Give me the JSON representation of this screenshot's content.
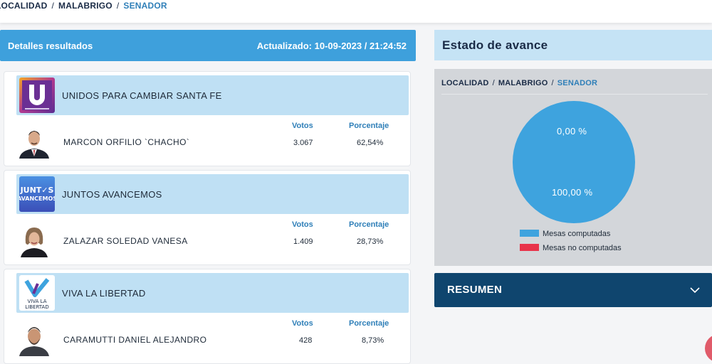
{
  "breadcrumb": {
    "items": [
      "LOCALIDAD",
      "MALABRIGO"
    ],
    "current": "SENADOR"
  },
  "details": {
    "title": "Detalles resultados",
    "updated": "Actualizado: 10-09-2023 / 21:24:52"
  },
  "columns": {
    "votes": "Votos",
    "percent": "Porcentaje"
  },
  "results": [
    {
      "party": "UNIDOS PARA CAMBIAR SANTA FE",
      "candidate": "MARCON ORFILIO `CHACHO`",
      "votes": "3.067",
      "percent": "62,54%",
      "logo_icon": "unidos-logo-icon",
      "logo_text": "U"
    },
    {
      "party": "JUNTOS AVANCEMOS",
      "candidate": "ZALAZAR SOLEDAD VANESA",
      "votes": "1.409",
      "percent": "28,73%",
      "logo_icon": "juntos-avancemos-logo-icon",
      "logo_text": "JUNTOS AVANCEMOS"
    },
    {
      "party": "VIVA LA LIBERTAD",
      "candidate": "CARAMUTTI DANIEL ALEJANDRO",
      "votes": "428",
      "percent": "8,73%",
      "logo_icon": "viva-la-libertad-logo-icon",
      "logo_text": "VIVA LA LIBERTAD"
    }
  ],
  "estado": {
    "title": "Estado de avance",
    "label_no_computadas": "0,00 %",
    "label_computadas": "100,00 %",
    "legend": [
      {
        "label": "Mesas computadas",
        "color": "#3ea3de"
      },
      {
        "label": "Mesas no computadas",
        "color": "#e8334a"
      }
    ]
  },
  "chart_data": {
    "type": "pie",
    "categories": [
      "Mesas computadas",
      "Mesas no computadas"
    ],
    "values": [
      100.0,
      0.0
    ],
    "colors": [
      "#3ea3de",
      "#e8334a"
    ],
    "legend_position": "bottom"
  },
  "resumen": {
    "title": "RESUMEN",
    "icon": "chevron-down-icon"
  }
}
